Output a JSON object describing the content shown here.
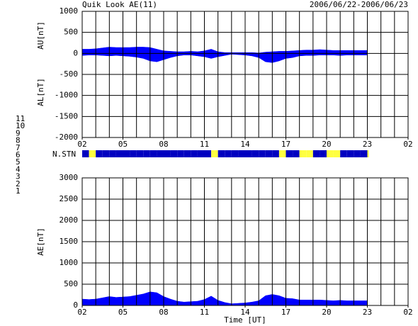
{
  "chart_data": [
    {
      "type": "band",
      "title": "Quik Look AE(11)",
      "subtitle": "2006/06/22-2006/06/23",
      "ylabels": [
        "AU[nT]",
        "AL[nT]"
      ],
      "x": [
        0,
        0.5,
        1,
        1.5,
        2,
        2.5,
        3,
        3.5,
        4,
        4.5,
        5,
        5.5,
        6,
        6.5,
        7,
        7.5,
        8,
        8.5,
        9,
        9.5,
        10,
        10.5,
        11,
        11.5,
        12,
        12.5,
        13,
        13.5,
        14,
        14.5,
        15,
        15.5,
        16,
        16.5,
        17,
        17.5,
        18,
        18.5,
        19,
        19.5,
        20,
        20.5,
        21
      ],
      "series": [
        {
          "color": "#0000ff",
          "values": [
            100,
            100,
            110,
            130,
            150,
            140,
            140,
            140,
            150,
            150,
            140,
            100,
            60,
            50,
            40,
            40,
            50,
            40,
            60,
            100,
            40,
            20,
            20,
            20,
            20,
            20,
            10,
            30,
            40,
            50,
            50,
            60,
            70,
            80,
            80,
            90,
            80,
            70,
            70,
            70,
            70,
            70,
            70
          ]
        },
        {
          "color": "#0000ff",
          "values": [
            -50,
            -40,
            -40,
            -50,
            -60,
            -50,
            -60,
            -70,
            -90,
            -120,
            -180,
            -200,
            -150,
            -100,
            -60,
            -40,
            -40,
            -60,
            -80,
            -120,
            -80,
            -50,
            -20,
            -30,
            -40,
            -60,
            -100,
            -200,
            -220,
            -180,
            -120,
            -100,
            -60,
            -50,
            -50,
            -40,
            -40,
            -40,
            -50,
            -40,
            -40,
            -40,
            -40
          ]
        }
      ],
      "xlim": [
        0,
        24
      ],
      "xticks": [
        {
          "value": 0,
          "label": "02"
        },
        {
          "value": 3,
          "label": "05"
        },
        {
          "value": 6,
          "label": "08"
        },
        {
          "value": 9,
          "label": "11"
        },
        {
          "value": 12,
          "label": "14"
        },
        {
          "value": 15,
          "label": "17"
        },
        {
          "value": 18,
          "label": "20"
        },
        {
          "value": 21,
          "label": "23"
        },
        {
          "value": 24,
          "label": "02"
        }
      ],
      "xgrid_step": 1,
      "ylim": [
        -2000,
        1000
      ],
      "yticks": [
        1000,
        500,
        0,
        -500,
        -1000,
        -1500,
        -2000
      ],
      "grid": true
    },
    {
      "type": "strip",
      "label": "N.STN",
      "x": [
        0,
        0.5,
        1,
        1.5,
        2,
        2.5,
        3,
        3.5,
        4,
        4.5,
        5,
        5.5,
        6,
        6.5,
        7,
        7.5,
        8,
        8.5,
        9,
        9.5,
        10,
        10.5,
        11,
        11.5,
        12,
        12.5,
        13,
        13.5,
        14,
        14.5,
        15,
        15.5,
        16,
        16.5,
        17,
        17.5,
        18,
        18.5,
        19,
        19.5,
        20,
        20.5,
        21
      ],
      "values": [
        9,
        8,
        9,
        9,
        9,
        9,
        9,
        9,
        9,
        9,
        9,
        9,
        9,
        9,
        9,
        9,
        9,
        9,
        9,
        8,
        9,
        9,
        9,
        9,
        9,
        9,
        9,
        9,
        9,
        8,
        9,
        9,
        8,
        8,
        9,
        9,
        8,
        8,
        9,
        9,
        9,
        9,
        8
      ],
      "legend": {
        "labels": [
          11,
          10,
          9,
          8,
          7,
          6,
          5,
          4,
          3,
          2,
          1
        ],
        "colors": [
          "#00ffff",
          "#ff00ff",
          "#0000c0",
          "#ffff40",
          "#80ff80",
          "#ff0000",
          "#c0c0c0",
          "#a0a0a0",
          "#008080",
          "#800080",
          "#0000ff"
        ]
      }
    },
    {
      "type": "area",
      "xlabel": "Time [UT]",
      "ylabel": "AE[nT]",
      "x": [
        0,
        0.5,
        1,
        1.5,
        2,
        2.5,
        3,
        3.5,
        4,
        4.5,
        5,
        5.5,
        6,
        6.5,
        7,
        7.5,
        8,
        8.5,
        9,
        9.5,
        10,
        10.5,
        11,
        11.5,
        12,
        12.5,
        13,
        13.5,
        14,
        14.5,
        15,
        15.5,
        16,
        16.5,
        17,
        17.5,
        18,
        18.5,
        19,
        19.5,
        20,
        20.5,
        21
      ],
      "values": [
        150,
        140,
        150,
        180,
        210,
        190,
        200,
        210,
        240,
        270,
        320,
        300,
        210,
        150,
        100,
        80,
        90,
        100,
        140,
        220,
        120,
        70,
        40,
        50,
        60,
        80,
        110,
        230,
        260,
        230,
        170,
        160,
        130,
        130,
        130,
        130,
        120,
        110,
        120,
        110,
        110,
        110,
        110
      ],
      "color": "#0000ff",
      "xlim": [
        0,
        24
      ],
      "xticks": [
        {
          "value": 0,
          "label": "02"
        },
        {
          "value": 3,
          "label": "05"
        },
        {
          "value": 6,
          "label": "08"
        },
        {
          "value": 9,
          "label": "11"
        },
        {
          "value": 12,
          "label": "14"
        },
        {
          "value": 15,
          "label": "17"
        },
        {
          "value": 18,
          "label": "20"
        },
        {
          "value": 21,
          "label": "23"
        },
        {
          "value": 24,
          "label": "02"
        }
      ],
      "xgrid_step": 1,
      "ylim": [
        0,
        3000
      ],
      "yticks": [
        0,
        500,
        1000,
        1500,
        2000,
        2500,
        3000
      ],
      "grid": true
    }
  ]
}
